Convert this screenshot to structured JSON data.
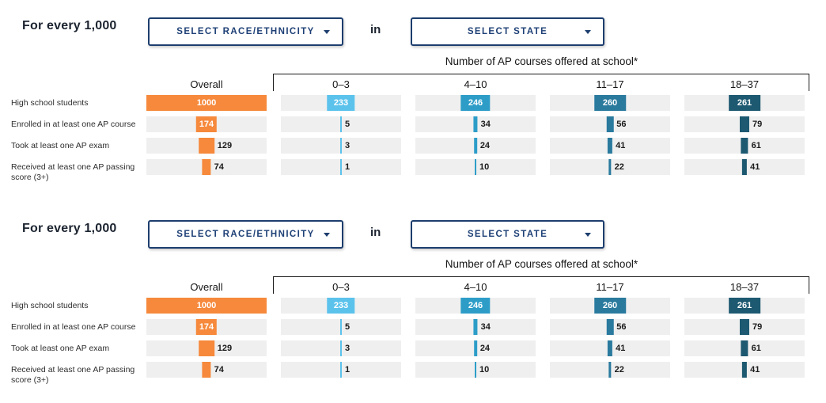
{
  "colors": {
    "orange": "#F6893B",
    "blue_0_3": "#5BC2EC",
    "blue_4_10": "#2D9DC8",
    "blue_11_17": "#2A7A9E",
    "blue_18_37": "#1D5971",
    "track": "#EFEFEF",
    "navy": "#1D3E6E"
  },
  "panels": [
    {
      "intro": {
        "prefix": "For every 1,000",
        "race_dropdown": "SELECT RACE/ETHNICITY",
        "conjunction": "in",
        "state_dropdown": "SELECT STATE"
      },
      "group_header": "Number of AP courses offered at school*",
      "rows": [
        "High school students",
        "Enrolled in at least one AP course",
        "Took at least one AP exam",
        "Received at least one AP passing score (3+)"
      ],
      "columns": [
        {
          "label": "Overall",
          "color": "#F6893B",
          "values": [
            1000,
            174,
            129,
            74
          ]
        },
        {
          "label": "0–3",
          "color": "#5BC2EC",
          "values": [
            233,
            5,
            3,
            1
          ]
        },
        {
          "label": "4–10",
          "color": "#2D9DC8",
          "values": [
            246,
            34,
            24,
            10
          ]
        },
        {
          "label": "11–17",
          "color": "#2A7A9E",
          "values": [
            260,
            56,
            41,
            22
          ]
        },
        {
          "label": "18–37",
          "color": "#1D5971",
          "values": [
            261,
            79,
            61,
            41
          ]
        }
      ]
    },
    {
      "intro": {
        "prefix": "For every 1,000",
        "race_dropdown": "SELECT RACE/ETHNICITY",
        "conjunction": "in",
        "state_dropdown": "SELECT STATE"
      },
      "group_header": "Number of AP courses offered at school*",
      "rows": [
        "High school students",
        "Enrolled in at least one AP course",
        "Took at least one AP exam",
        "Received at least one AP passing score (3+)"
      ],
      "columns": [
        {
          "label": "Overall",
          "color": "#F6893B",
          "values": [
            1000,
            174,
            129,
            74
          ]
        },
        {
          "label": "0–3",
          "color": "#5BC2EC",
          "values": [
            233,
            5,
            3,
            1
          ]
        },
        {
          "label": "4–10",
          "color": "#2D9DC8",
          "values": [
            246,
            34,
            24,
            10
          ]
        },
        {
          "label": "11–17",
          "color": "#2A7A9E",
          "values": [
            260,
            56,
            41,
            22
          ]
        },
        {
          "label": "18–37",
          "color": "#1D5971",
          "values": [
            261,
            79,
            61,
            41
          ]
        }
      ]
    }
  ],
  "chart_data": [
    {
      "type": "bar",
      "orientation": "horizontal-centered",
      "title": "Number of AP courses offered at school*",
      "note": "For every 1,000",
      "categories": [
        "High school students",
        "Enrolled in at least one AP course",
        "Took at least one AP exam",
        "Received at least one AP passing score (3+)"
      ],
      "series": [
        {
          "name": "Overall",
          "color": "#F6893B",
          "values": [
            1000,
            174,
            129,
            74
          ]
        },
        {
          "name": "0–3",
          "color": "#5BC2EC",
          "values": [
            233,
            5,
            3,
            1
          ]
        },
        {
          "name": "4–10",
          "color": "#2D9DC8",
          "values": [
            246,
            34,
            24,
            10
          ]
        },
        {
          "name": "11–17",
          "color": "#2A7A9E",
          "values": [
            260,
            56,
            41,
            22
          ]
        },
        {
          "name": "18–37",
          "color": "#1D5971",
          "values": [
            261,
            79,
            61,
            41
          ]
        }
      ],
      "xlim": [
        0,
        1000
      ],
      "grid": false,
      "legend": "none"
    },
    {
      "type": "bar",
      "orientation": "horizontal-centered",
      "title": "Number of AP courses offered at school*",
      "note": "For every 1,000",
      "categories": [
        "High school students",
        "Enrolled in at least one AP course",
        "Took at least one AP exam",
        "Received at least one AP passing score (3+)"
      ],
      "series": [
        {
          "name": "Overall",
          "color": "#F6893B",
          "values": [
            1000,
            174,
            129,
            74
          ]
        },
        {
          "name": "0–3",
          "color": "#5BC2EC",
          "values": [
            233,
            5,
            3,
            1
          ]
        },
        {
          "name": "4–10",
          "color": "#2D9DC8",
          "values": [
            246,
            34,
            24,
            10
          ]
        },
        {
          "name": "11–17",
          "color": "#2A7A9E",
          "values": [
            260,
            56,
            41,
            22
          ]
        },
        {
          "name": "18–37",
          "color": "#1D5971",
          "values": [
            261,
            79,
            61,
            41
          ]
        }
      ],
      "xlim": [
        0,
        1000
      ],
      "grid": false,
      "legend": "none"
    }
  ]
}
